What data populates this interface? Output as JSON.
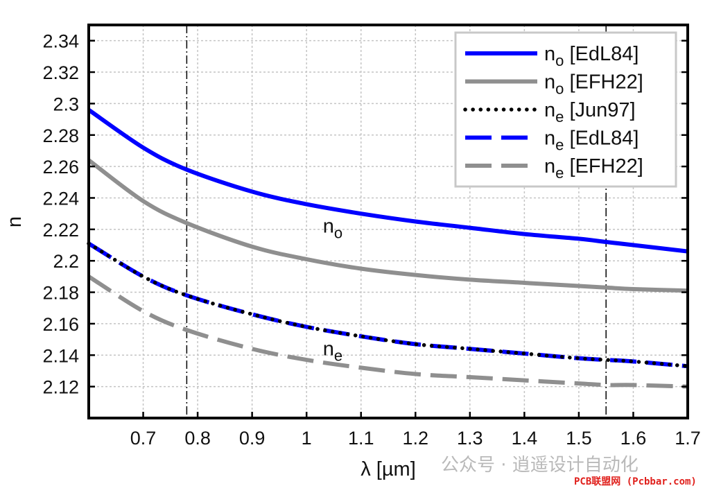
{
  "chart_data": {
    "type": "line",
    "xlabel": "λ [µm]",
    "ylabel": "n",
    "xlim": [
      0.6,
      1.7
    ],
    "ylim": [
      2.1,
      2.35
    ],
    "xticks": [
      0.7,
      0.8,
      0.9,
      1,
      1.1,
      1.2,
      1.3,
      1.4,
      1.5,
      1.6,
      1.7
    ],
    "xtick_labels": [
      "0.7",
      "0.8",
      "0.9",
      "1",
      "1.1",
      "1.2",
      "1.3",
      "1.4",
      "1.5",
      "1.6",
      "1.7"
    ],
    "yticks": [
      2.12,
      2.14,
      2.16,
      2.18,
      2.2,
      2.22,
      2.24,
      2.26,
      2.28,
      2.3,
      2.32,
      2.34
    ],
    "ytick_labels": [
      "2.12",
      "2.14",
      "2.16",
      "2.18",
      "2.2",
      "2.22",
      "2.24",
      "2.26",
      "2.28",
      "2.3",
      "2.32",
      "2.34"
    ],
    "grid": true,
    "legend_position": "top-right",
    "vertical_markers": [
      0.78,
      1.55
    ],
    "annotations": [
      {
        "base": "n",
        "sub": "o",
        "x": 1.03,
        "y": 2.218
      },
      {
        "base": "n",
        "sub": "e",
        "x": 1.03,
        "y": 2.14
      }
    ],
    "series": [
      {
        "base": "n",
        "sub": "o",
        "ref": "[EdL84]",
        "color": "#0000ff",
        "style": "solid",
        "x": [
          0.6,
          0.7,
          0.78,
          0.9,
          1.0,
          1.1,
          1.2,
          1.3,
          1.4,
          1.5,
          1.55,
          1.6,
          1.7
        ],
        "y": [
          2.296,
          2.272,
          2.258,
          2.244,
          2.236,
          2.23,
          2.225,
          2.221,
          2.217,
          2.214,
          2.212,
          2.21,
          2.206
        ]
      },
      {
        "base": "n",
        "sub": "o",
        "ref": "[EFH22]",
        "color": "#8f8f8f",
        "style": "solid",
        "x": [
          0.6,
          0.7,
          0.78,
          0.9,
          1.0,
          1.1,
          1.2,
          1.3,
          1.4,
          1.5,
          1.55,
          1.6,
          1.7
        ],
        "y": [
          2.264,
          2.238,
          2.224,
          2.209,
          2.201,
          2.195,
          2.191,
          2.188,
          2.186,
          2.184,
          2.183,
          2.182,
          2.181
        ]
      },
      {
        "base": "n",
        "sub": "e",
        "ref": "[Jun97]",
        "color": "#000000",
        "style": "dotted",
        "x": [
          0.6,
          0.7,
          0.78,
          0.9,
          1.0,
          1.1,
          1.2,
          1.3,
          1.4,
          1.5,
          1.55,
          1.6,
          1.7
        ],
        "y": [
          2.211,
          2.19,
          2.178,
          2.166,
          2.158,
          2.152,
          2.147,
          2.144,
          2.141,
          2.138,
          2.137,
          2.136,
          2.133
        ]
      },
      {
        "base": "n",
        "sub": "e",
        "ref": "[EdL84]",
        "color": "#0000ff",
        "style": "dashed",
        "x": [
          0.6,
          0.7,
          0.78,
          0.9,
          1.0,
          1.1,
          1.2,
          1.3,
          1.4,
          1.5,
          1.55,
          1.6,
          1.7
        ],
        "y": [
          2.211,
          2.19,
          2.178,
          2.166,
          2.158,
          2.152,
          2.147,
          2.144,
          2.141,
          2.138,
          2.137,
          2.136,
          2.133
        ]
      },
      {
        "base": "n",
        "sub": "e",
        "ref": "[EFH22]",
        "color": "#8f8f8f",
        "style": "dashed",
        "x": [
          0.6,
          0.7,
          0.78,
          0.9,
          1.0,
          1.1,
          1.2,
          1.3,
          1.4,
          1.5,
          1.55,
          1.6,
          1.7
        ],
        "y": [
          2.19,
          2.168,
          2.156,
          2.144,
          2.137,
          2.132,
          2.128,
          2.126,
          2.124,
          2.122,
          2.121,
          2.121,
          2.12
        ]
      }
    ]
  },
  "watermark": {
    "text": "公众号 · 逍遥设计自动化",
    "site": "PCB联盟网 (Pcbbar.com)"
  }
}
